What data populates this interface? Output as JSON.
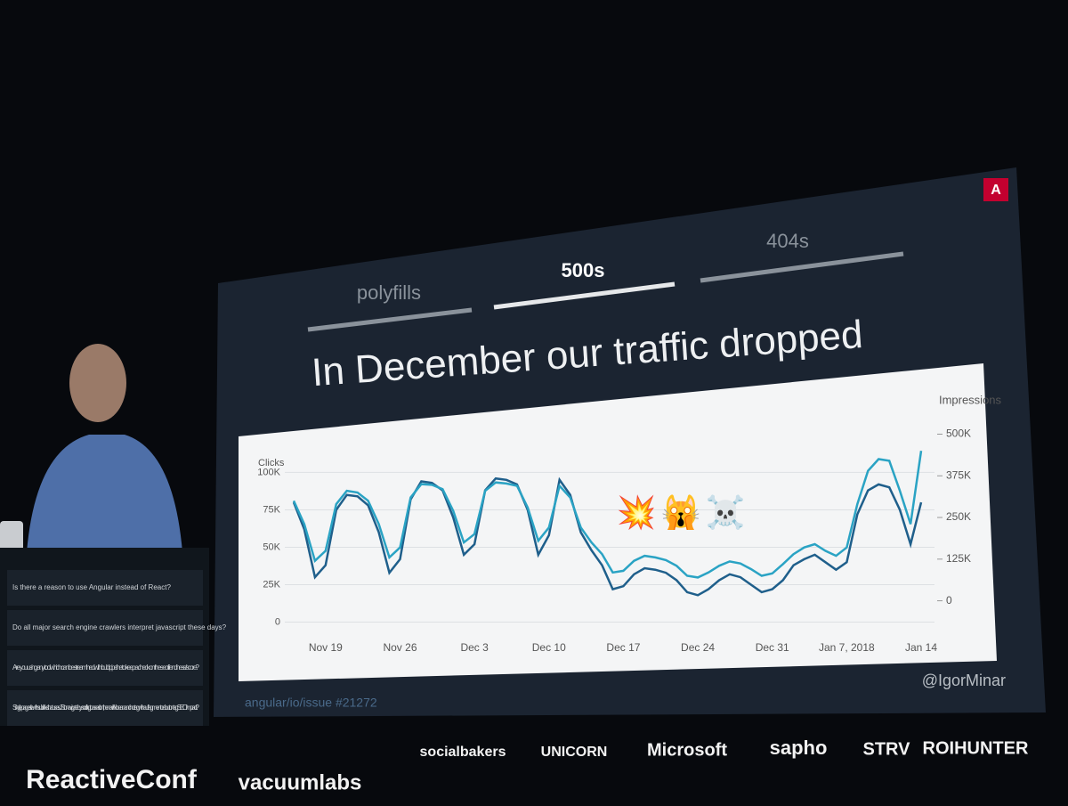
{
  "slide": {
    "tabs": [
      "polyfills",
      "500s",
      "404s"
    ],
    "title": "In December our traffic dropped",
    "handle": "@IgorMinar",
    "link": "angular/io/issue #21272"
  },
  "chart_data": {
    "type": "line",
    "y_label": "Clicks",
    "y2_label": "Impressions",
    "annotations": [
      "💥",
      "🙀",
      "☠️"
    ],
    "categories": [
      null,
      null,
      null,
      "Nov 19",
      null,
      null,
      null,
      null,
      null,
      null,
      "Nov 26",
      null,
      null,
      null,
      null,
      null,
      null,
      "Dec 3",
      null,
      null,
      null,
      null,
      null,
      null,
      "Dec 10",
      null,
      null,
      null,
      null,
      null,
      null,
      "Dec 17",
      null,
      null,
      null,
      null,
      null,
      null,
      "Dec 24",
      null,
      null,
      null,
      null,
      null,
      null,
      "Dec 31",
      null,
      null,
      null,
      null,
      null,
      null,
      "Jan 7, 2018",
      null,
      null,
      null,
      null,
      null,
      null,
      "Jan 14"
    ],
    "series": [
      {
        "name": "Clicks",
        "color": "#1f5f8b",
        "values": [
          80000,
          62000,
          30000,
          38000,
          75000,
          85000,
          84000,
          78000,
          60000,
          33000,
          42000,
          82000,
          94000,
          93000,
          88000,
          70000,
          45000,
          52000,
          88000,
          96000,
          95000,
          92000,
          75000,
          45000,
          58000,
          95000,
          85000,
          60000,
          48000,
          38000,
          22000,
          24000,
          32000,
          36000,
          35000,
          33000,
          28000,
          20000,
          18000,
          22000,
          28000,
          32000,
          30000,
          25000,
          20000,
          22000,
          28000,
          38000,
          42000,
          45000,
          40000,
          35000,
          40000,
          72000,
          88000,
          92000,
          90000,
          75000,
          52000,
          80000
        ]
      },
      {
        "name": "Impressions",
        "color": "#2aa3c4",
        "axis": "y2",
        "values": [
          300000,
          230000,
          120000,
          150000,
          290000,
          330000,
          325000,
          300000,
          230000,
          130000,
          160000,
          310000,
          350000,
          348000,
          335000,
          270000,
          175000,
          200000,
          330000,
          355000,
          352000,
          345000,
          280000,
          180000,
          220000,
          345000,
          310000,
          220000,
          175000,
          140000,
          85000,
          90000,
          120000,
          135000,
          130000,
          122000,
          105000,
          75000,
          70000,
          85000,
          105000,
          118000,
          112000,
          95000,
          75000,
          82000,
          110000,
          140000,
          160000,
          170000,
          150000,
          135000,
          160000,
          290000,
          390000,
          425000,
          420000,
          330000,
          230000,
          450000
        ]
      }
    ],
    "ylim": [
      -8000,
      130000
    ],
    "yticks": [
      0,
      {
        "value": 25000,
        "label": "25K"
      },
      {
        "value": 50000,
        "label": "50K"
      },
      {
        "value": 75000,
        "label": "75K"
      },
      {
        "value": 100000,
        "label": "100K"
      }
    ],
    "y2lim": [
      -100000,
      520000
    ],
    "y2ticks": [
      0,
      {
        "value": 125000,
        "label": "125K"
      },
      {
        "value": 250000,
        "label": "250K"
      },
      {
        "value": 375000,
        "label": "375K"
      },
      {
        "value": 500000,
        "label": "500K"
      }
    ],
    "grid": true
  },
  "qa": [
    "Is there a reason to use Angular instead of React?",
    "Do all major search engine crawlers interpret javascript these days?",
    "Are you using any tool which can be streamlined with build pipeline to keep a check on the seo friendliness/score?",
    "Single pagesite with sub links that uses JS to navigate by scrolling to a section, the navlink be an anchor tag with a url fragment or a button tag SEO impact?"
  ],
  "sponsors": [
    "socialbakers",
    "UNICORN",
    "Microsoft",
    "sapho",
    "STRV",
    "ROIHUNTER",
    "ReactiveConf",
    "vacuumlabs"
  ]
}
